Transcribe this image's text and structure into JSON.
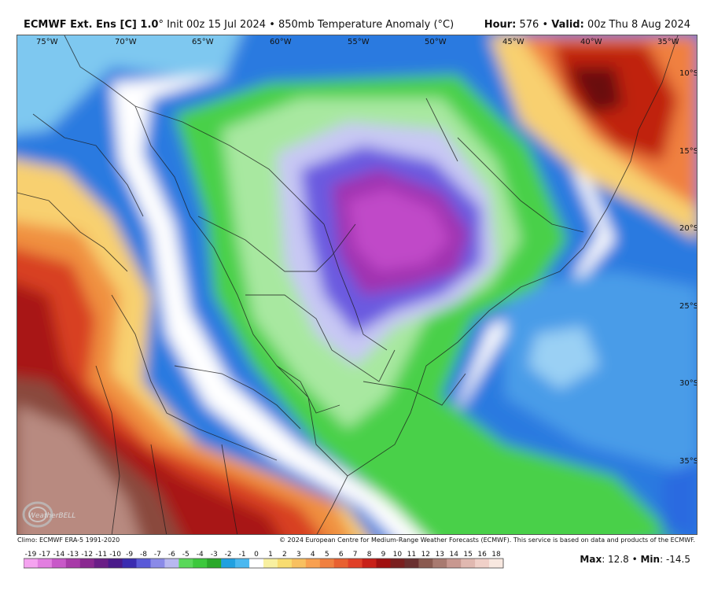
{
  "header": {
    "model": "ECMWF Ext. Ens [C] 1.0",
    "degree": "°",
    "init": " Init 00z 15 Jul 2024 • 850mb Temperature Anomaly (°C)",
    "hour_label": "Hour:",
    "hour_value": " 576 • ",
    "valid_label": "Valid:",
    "valid_value": " 00z Thu 8 Aug 2024"
  },
  "map": {
    "lon_labels": [
      "75°W",
      "70°W",
      "65°W",
      "60°W",
      "55°W",
      "50°W",
      "45°W",
      "40°W",
      "35°W"
    ],
    "lat_labels": [
      "10°S",
      "15°S",
      "20°S",
      "25°S",
      "30°S",
      "35°S"
    ],
    "logo_text": "WeatherBELL"
  },
  "footer": {
    "climo": "Climo: ECMWF ERA-5 1991-2020",
    "copyright": "© 2024 European Centre for Medium-Range Weather Forecasts (ECMWF). This service is based on data and products of the ECMWF.",
    "max_label": "Max",
    "max_value": ": 12.8 • ",
    "min_label": "Min",
    "min_value": ": -14.5"
  },
  "colorbar": {
    "labels": [
      "-19",
      "-17",
      "-14",
      "-13",
      "-12",
      "-11",
      "-10",
      "-9",
      "-8",
      "-7",
      "-6",
      "-5",
      "-4",
      "-3",
      "-2",
      "-1",
      "0",
      "1",
      "2",
      "3",
      "4",
      "5",
      "6",
      "7",
      "8",
      "9",
      "10",
      "11",
      "12",
      "13",
      "14",
      "15",
      "16",
      "18"
    ],
    "colors": [
      "#f5a3f0",
      "#e27ee0",
      "#c858c8",
      "#a83aa8",
      "#8a2890",
      "#6a1e86",
      "#4a1a8a",
      "#3a2cb0",
      "#5a5ad8",
      "#8a8ae8",
      "#b8b8f0",
      "#5ad85a",
      "#3cc83c",
      "#2aa82a",
      "#20a0e0",
      "#4ab8f0",
      "#ffffff",
      "#f8f0a0",
      "#f8dc70",
      "#f8c060",
      "#f8a050",
      "#f08040",
      "#e86030",
      "#e04028",
      "#c82018",
      "#a01010",
      "#7a2020",
      "#6a3030",
      "#8a5a50",
      "#a87a70",
      "#c89890",
      "#e0b8b0",
      "#f0d0c8",
      "#f8e8e0"
    ]
  }
}
